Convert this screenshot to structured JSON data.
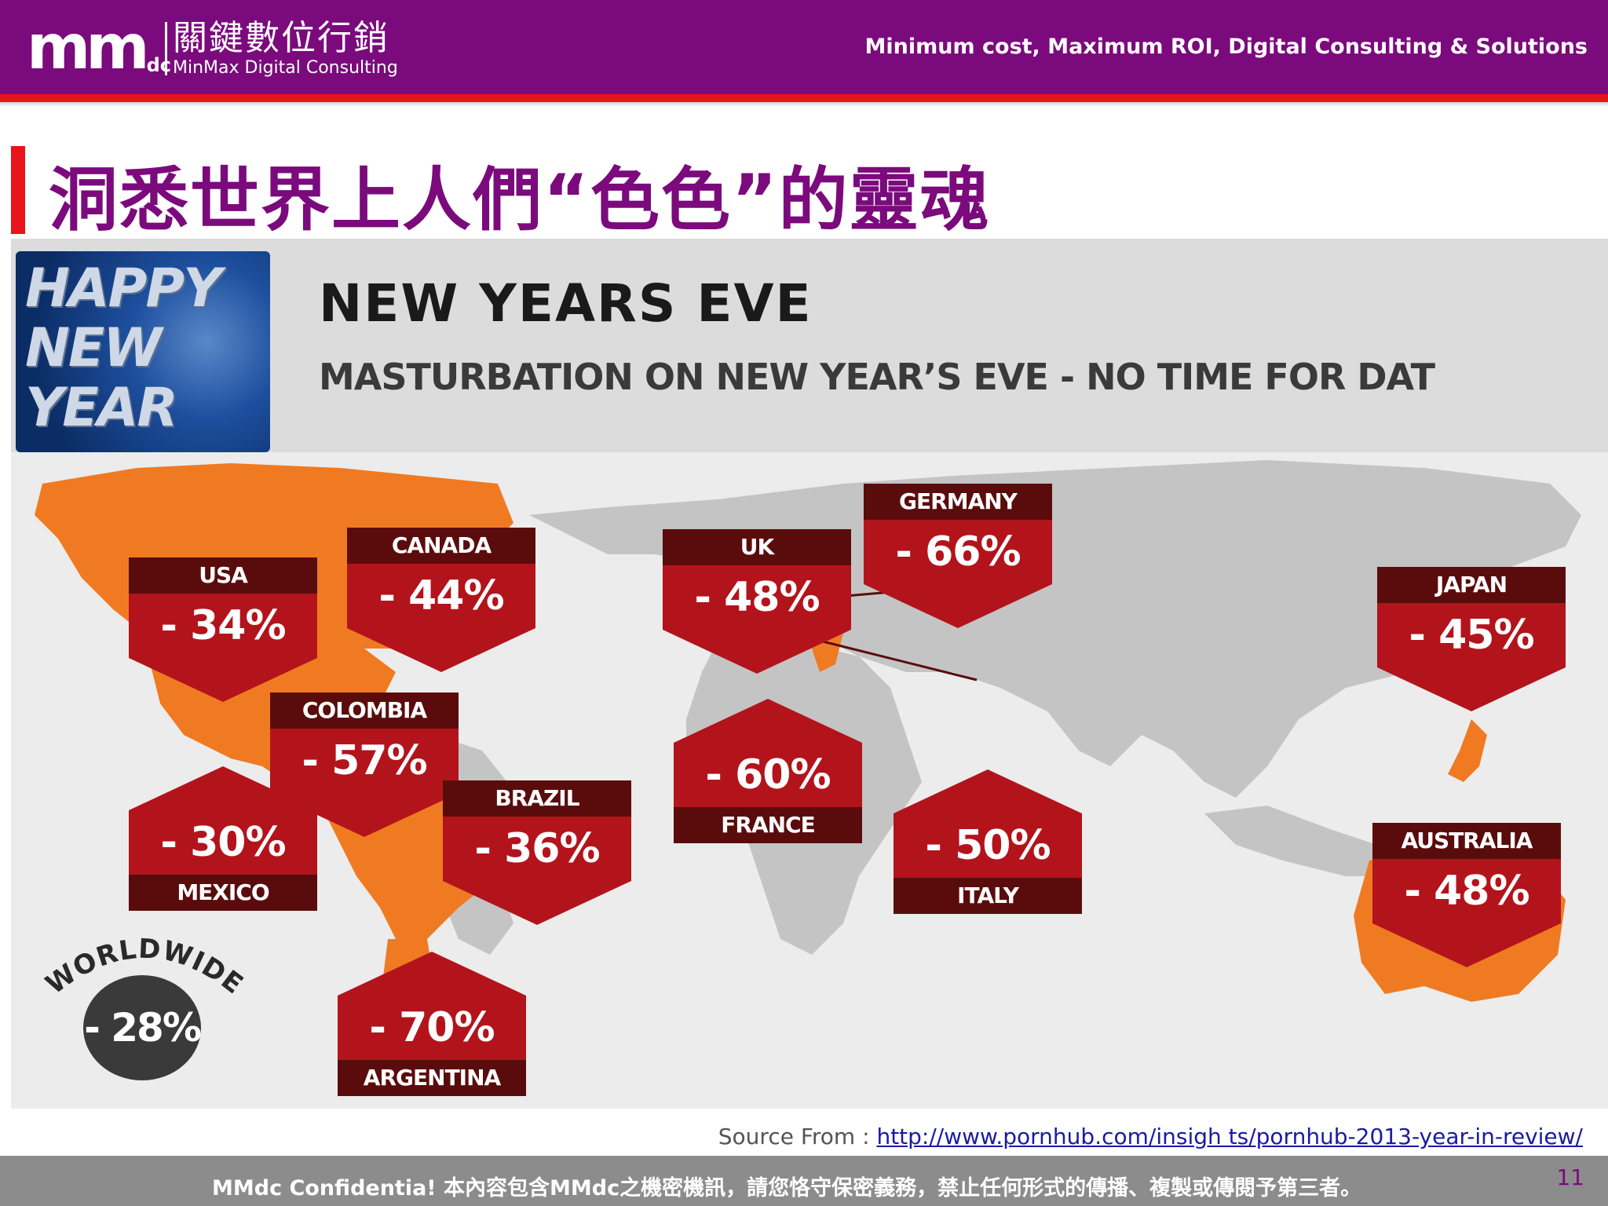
{
  "header": {
    "logo_mark": "mm",
    "logo_mark_small": "dc",
    "logo_cn": "關鍵數位行銷",
    "logo_en": "MinMax Digital Consulting",
    "tagline": "Minimum cost, Maximum ROI, Digital Consulting & Solutions",
    "accent_color": "#7b0a7c",
    "stripe_color": "#e8141b"
  },
  "title": "洞悉世界上人們“色色”的靈魂",
  "infographic": {
    "banner_text": "HAPPY NEW YEAR",
    "heading": "NEW YEARS EVE",
    "subheading": "MASTURBATION ON NEW YEAR’S EVE - NO TIME FOR DAT",
    "badge_color": "#b3141c",
    "label_color": "#5a0c0c",
    "highlight_color": "#f07a22",
    "countries": [
      {
        "name": "USA",
        "value": "- 34%"
      },
      {
        "name": "CANADA",
        "value": "- 44%"
      },
      {
        "name": "COLOMBIA",
        "value": "- 57%"
      },
      {
        "name": "MEXICO",
        "value": "- 30%"
      },
      {
        "name": "BRAZIL",
        "value": "- 36%"
      },
      {
        "name": "ARGENTINA",
        "value": "- 70%"
      },
      {
        "name": "UK",
        "value": "- 48%"
      },
      {
        "name": "GERMANY",
        "value": "- 66%"
      },
      {
        "name": "FRANCE",
        "value": "- 60%"
      },
      {
        "name": "ITALY",
        "value": "- 50%"
      },
      {
        "name": "JAPAN",
        "value": "- 45%"
      },
      {
        "name": "AUSTRALIA",
        "value": "- 48%"
      }
    ],
    "worldwide_label": "WORLDWIDE",
    "worldwide_value": "- 28%"
  },
  "source": {
    "prefix": "Source From : ",
    "link": "http://www.pornhub.com/insigh ts/pornhub-2013-year-in-review/"
  },
  "footer": {
    "confidential": "MMdc Confidentia! 本內容包含MMdc之機密機訊，請您恪守保密義務，禁止任何形式的傳播、複製或傳閱予第三者。",
    "page_number": "11"
  }
}
